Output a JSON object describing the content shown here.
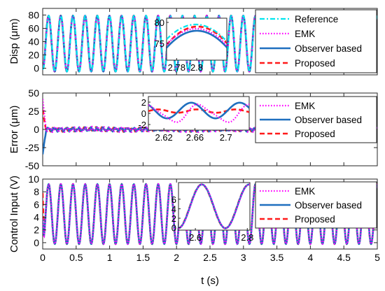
{
  "chart_data": [
    {
      "type": "line",
      "ylabel": "Disp (μm)",
      "ylim": [
        -10,
        90
      ],
      "yticks": [
        0,
        20,
        40,
        60,
        80
      ],
      "xlim": [
        0,
        5
      ],
      "signal": {
        "offset": 37,
        "amplitude": 42,
        "frequency_hz": 5.5
      },
      "series": [
        {
          "name": "Reference",
          "color": "#00e5ee",
          "style": "dashdot"
        },
        {
          "name": "EMK",
          "color": "#ff00ff",
          "style": "dotted"
        },
        {
          "name": "Observer based",
          "color": "#1f6fbf",
          "style": "solid"
        },
        {
          "name": "Proposed",
          "color": "#ff1a1a",
          "style": "dashed"
        }
      ],
      "inset": {
        "xlim": [
          2.77,
          2.83
        ],
        "ylim": [
          71,
          81
        ],
        "xticks": [
          2.78,
          2.8
        ],
        "yticks": [
          75,
          80
        ],
        "xticklabels": [
          "2.78",
          "2.8"
        ],
        "yticklabels": [
          "75",
          "80"
        ],
        "peaks": {
          "Reference": 79.5,
          "Proposed": 79.0,
          "Observer based": 78.0
        }
      }
    },
    {
      "type": "line",
      "ylabel": "Error (μm)",
      "ylim": [
        -50,
        50
      ],
      "yticks": [
        -50,
        -25,
        0,
        25,
        50
      ],
      "xlim": [
        0,
        5
      ],
      "series": [
        {
          "name": "EMK",
          "color": "#ff00ff",
          "style": "dotted"
        },
        {
          "name": "Observer based",
          "color": "#1f6fbf",
          "style": "solid"
        },
        {
          "name": "Proposed",
          "color": "#ff1a1a",
          "style": "dashed"
        }
      ],
      "inset": {
        "xlim": [
          2.6,
          2.73
        ],
        "ylim": [
          -3,
          3
        ],
        "xticks": [
          2.62,
          2.66,
          2.7
        ],
        "yticks": [
          -2,
          0,
          2
        ],
        "xticklabels": [
          "2.62",
          "2.66",
          "2.7"
        ],
        "yticklabels": [
          "-2",
          "0",
          "2"
        ]
      }
    },
    {
      "type": "line",
      "ylabel": "Control Input (V)",
      "xlabel": "t (s)",
      "ylim": [
        -1,
        10
      ],
      "yticks": [
        0,
        2,
        4,
        6,
        8,
        10
      ],
      "xlim": [
        0,
        5
      ],
      "xticks": [
        0,
        0.5,
        1,
        1.5,
        2,
        2.5,
        3,
        3.5,
        4,
        4.5,
        5
      ],
      "xticklabels": [
        "0",
        "0.5",
        "1",
        "1.5",
        "2",
        "2.5",
        "3",
        "3.5",
        "4",
        "4.5",
        "5"
      ],
      "signal": {
        "offset": 4.5,
        "amplitude": 4.7,
        "frequency_hz": 5.5
      },
      "series": [
        {
          "name": "EMK",
          "color": "#ff00ff",
          "style": "dotted"
        },
        {
          "name": "Observer based",
          "color": "#1f6fbf",
          "style": "solid"
        },
        {
          "name": "Proposed",
          "color": "#ff1a1a",
          "style": "dashed"
        }
      ],
      "inset": {
        "xlim": [
          2.535,
          2.81
        ],
        "ylim": [
          -0.5,
          9.5
        ],
        "xticks": [
          2.6,
          2.8
        ],
        "yticks": [
          0,
          2,
          4,
          6
        ],
        "xticklabels": [
          "2.6",
          "2.8"
        ],
        "yticklabels": [
          "0",
          "2",
          "4",
          "6"
        ]
      }
    }
  ]
}
